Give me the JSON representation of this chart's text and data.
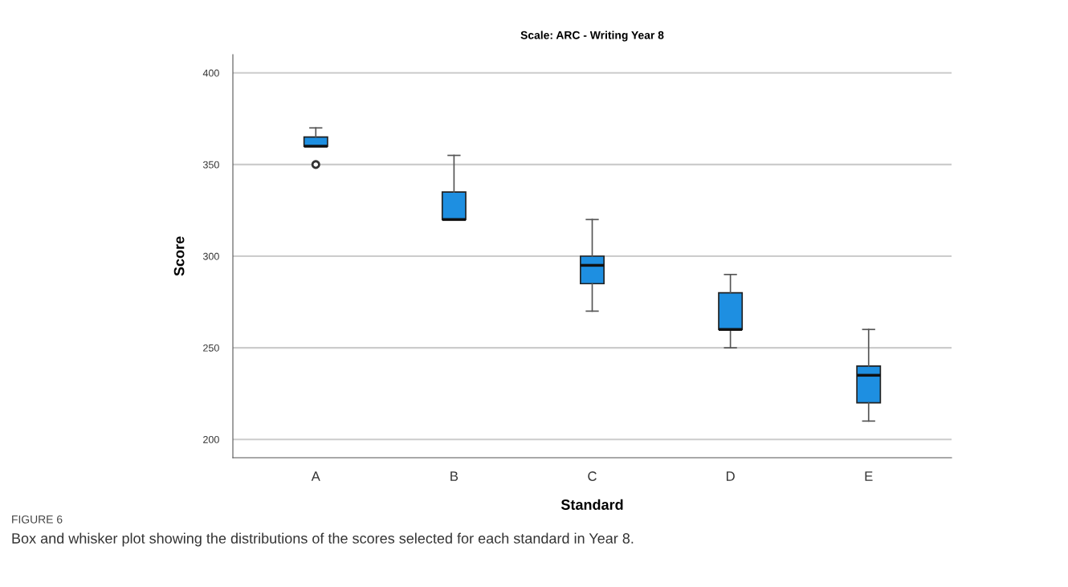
{
  "chart_data": {
    "type": "box",
    "title": "Scale: ARC - Writing Year 8",
    "xlabel": "Standard",
    "ylabel": "Score",
    "categories": [
      "A",
      "B",
      "C",
      "D",
      "E"
    ],
    "boxes": [
      {
        "low": 360,
        "q1": 360,
        "median": 360,
        "q3": 365,
        "high": 370,
        "outliers": [
          350
        ]
      },
      {
        "low": 320,
        "q1": 320,
        "median": 320,
        "q3": 335,
        "high": 355
      },
      {
        "low": 270,
        "q1": 285,
        "median": 295,
        "q3": 300,
        "high": 320
      },
      {
        "low": 250,
        "q1": 260,
        "median": 260,
        "q3": 280,
        "high": 290
      },
      {
        "low": 210,
        "q1": 220,
        "median": 235,
        "q3": 240,
        "high": 260
      }
    ],
    "color": "#1e8fe1",
    "ylim": [
      190,
      410
    ],
    "yticks": [
      200,
      250,
      300,
      350,
      400
    ],
    "grid": "y",
    "annotations": [
      "FIGURE 6",
      "Box and whisker plot showing the distributions of the scores selected for each standard in Year 8."
    ]
  }
}
